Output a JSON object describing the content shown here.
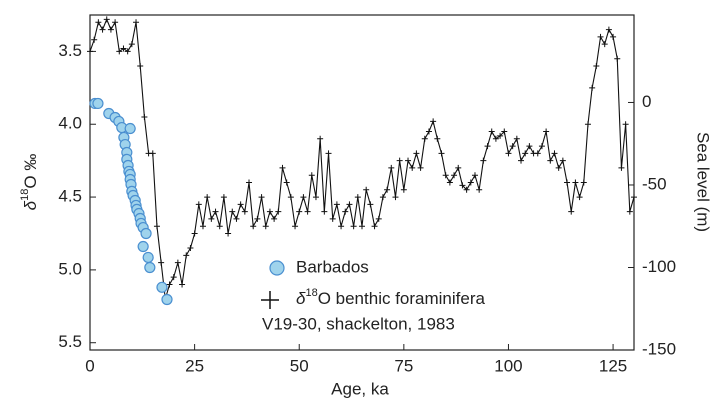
{
  "chart_data": {
    "type": "scatter-line",
    "xlabel": "Age, ka",
    "ylabel": [
      "δ",
      "18",
      "O ‰"
    ],
    "y2label": "Sea level (m)",
    "xlim": [
      0,
      130
    ],
    "ylim": [
      3.25,
      5.55
    ],
    "y_inverted": true,
    "y2lim": [
      -150,
      53
    ],
    "xticks": [
      0,
      25,
      50,
      75,
      100,
      125
    ],
    "yticks": [
      3.5,
      {
        "value": 4.0,
        "label": "4.0"
      },
      4.5,
      {
        "value": 5.0,
        "label": "5.0"
      },
      5.5
    ],
    "y2ticks": [
      0,
      -50,
      -100,
      -150
    ],
    "series": [
      {
        "name": "Barbados",
        "kind": "scatter",
        "axis": "y2",
        "color": "#9fd3ec",
        "edgecolor": "#4a8fd0",
        "x": [
          1.2,
          1.9,
          4.5,
          6.0,
          6.9,
          7.6,
          8.1,
          9.6,
          8.4,
          8.8,
          8.8,
          9.1,
          9.3,
          9.6,
          9.6,
          9.8,
          10.0,
          10.3,
          10.8,
          11.0,
          11.2,
          11.7,
          12.0,
          12.2,
          12.7,
          13.4,
          12.7,
          13.9,
          14.3,
          17.2,
          18.4
        ],
        "values": [
          -0.6,
          -0.6,
          -6.7,
          -9.1,
          -11.5,
          -15.2,
          -21.2,
          -15.8,
          -25.5,
          -30.3,
          -34.5,
          -38.2,
          -41.8,
          -43.6,
          -46.7,
          -49.7,
          -53.9,
          -56.4,
          -59.4,
          -62.4,
          -64.8,
          -67.3,
          -70.3,
          -73.3,
          -75.8,
          -79.4,
          -87.3,
          -93.9,
          -100,
          -112,
          -119.4
        ]
      },
      {
        "name": [
          "δ",
          "18",
          "O benthic foraminifera"
        ],
        "source": "V19-30, shackelton, 1983",
        "kind": "line",
        "axis": "y",
        "color": "#111111",
        "x": [
          0,
          1,
          2,
          3,
          4,
          5,
          6,
          7,
          8,
          9,
          10,
          11,
          12,
          13,
          14,
          15,
          16,
          17,
          18,
          19,
          20,
          21,
          22,
          23,
          24,
          25,
          26,
          27,
          28,
          29,
          30,
          31,
          32,
          33,
          34,
          35,
          36,
          37,
          38,
          39,
          40,
          41,
          42,
          43,
          44,
          45,
          46,
          47,
          48,
          49,
          50,
          51,
          52,
          53,
          54,
          55,
          56,
          57,
          58,
          59,
          60,
          61,
          62,
          63,
          64,
          65,
          66,
          67,
          68,
          69,
          70,
          71,
          72,
          73,
          74,
          75,
          76,
          77,
          78,
          79,
          80,
          81,
          82,
          83,
          84,
          85,
          86,
          87,
          88,
          89,
          90,
          91,
          92,
          93,
          94,
          95,
          96,
          97,
          98,
          99,
          100,
          101,
          102,
          103,
          104,
          105,
          106,
          107,
          108,
          109,
          110,
          111,
          112,
          113,
          114,
          115,
          116,
          117,
          118,
          119,
          120,
          121,
          122,
          123,
          124,
          125,
          126,
          127,
          128,
          129,
          130
        ],
        "values": [
          3.5,
          3.42,
          3.3,
          3.35,
          3.28,
          3.35,
          3.3,
          3.5,
          3.48,
          3.5,
          3.45,
          3.3,
          3.6,
          3.95,
          4.2,
          4.2,
          4.7,
          4.95,
          5.2,
          5.1,
          5.05,
          4.95,
          5.1,
          4.9,
          4.85,
          4.75,
          4.55,
          4.7,
          4.5,
          4.65,
          4.6,
          4.7,
          4.5,
          4.75,
          4.6,
          4.65,
          4.55,
          4.6,
          4.4,
          4.7,
          4.65,
          4.5,
          4.7,
          4.6,
          4.65,
          4.6,
          4.3,
          4.4,
          4.5,
          4.7,
          4.6,
          4.5,
          4.6,
          4.35,
          4.5,
          4.1,
          4.6,
          4.2,
          4.65,
          4.55,
          4.7,
          4.6,
          4.55,
          4.7,
          4.5,
          4.7,
          4.45,
          4.55,
          4.7,
          4.65,
          4.5,
          4.45,
          4.3,
          4.5,
          4.25,
          4.45,
          4.25,
          4.3,
          4.2,
          4.3,
          4.1,
          4.05,
          3.98,
          4.1,
          4.2,
          4.35,
          4.4,
          4.35,
          4.3,
          4.42,
          4.45,
          4.4,
          4.35,
          4.45,
          4.25,
          4.15,
          4.05,
          4.1,
          4.08,
          4.05,
          4.2,
          4.15,
          4.1,
          4.25,
          4.2,
          4.15,
          4.2,
          4.2,
          4.15,
          4.05,
          4.25,
          4.2,
          4.3,
          4.25,
          4.4,
          4.6,
          4.4,
          4.5,
          4.4,
          4.0,
          3.75,
          3.6,
          3.4,
          3.45,
          3.35,
          3.4,
          3.55,
          4.3,
          4.0,
          4.6,
          4.5
        ]
      }
    ]
  }
}
